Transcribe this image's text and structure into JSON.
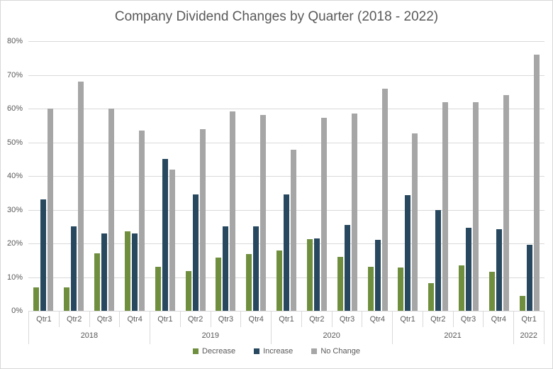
{
  "chart_data": {
    "type": "bar",
    "title": "Company Dividend Changes by Quarter (2018 - 2022)",
    "xlabel": "",
    "ylabel": "",
    "ylim": [
      0,
      80
    ],
    "y_unit": "%",
    "grid": true,
    "legend_position": "bottom",
    "y_tick_labels": [
      "0%",
      "10%",
      "20%",
      "30%",
      "40%",
      "50%",
      "60%",
      "70%",
      "80%"
    ],
    "quarter_labels": [
      "Qtr1",
      "Qtr2",
      "Qtr3",
      "Qtr4",
      "Qtr1",
      "Qtr2",
      "Qtr3",
      "Qtr4",
      "Qtr1",
      "Qtr2",
      "Qtr3",
      "Qtr4",
      "Qtr1",
      "Qtr2",
      "Qtr3",
      "Qtr4",
      "Qtr1"
    ],
    "year_groups": [
      {
        "label": "2018",
        "span": 4
      },
      {
        "label": "2019",
        "span": 4
      },
      {
        "label": "2020",
        "span": 4
      },
      {
        "label": "2021",
        "span": 4
      },
      {
        "label": "2022",
        "span": 1
      }
    ],
    "categories": [
      "2018 Qtr1",
      "2018 Qtr2",
      "2018 Qtr3",
      "2018 Qtr4",
      "2019 Qtr1",
      "2019 Qtr2",
      "2019 Qtr3",
      "2019 Qtr4",
      "2020 Qtr1",
      "2020 Qtr2",
      "2020 Qtr3",
      "2020 Qtr4",
      "2021 Qtr1",
      "2021 Qtr2",
      "2021 Qtr3",
      "2021 Qtr4",
      "2022 Qtr1"
    ],
    "series": [
      {
        "name": "Decrease",
        "color": "#6f8f3f",
        "values": [
          7,
          7,
          17,
          23.5,
          13,
          11.7,
          15.8,
          16.8,
          17.8,
          21.3,
          16,
          13,
          12.9,
          8.2,
          13.5,
          11.6,
          4.5
        ]
      },
      {
        "name": "Increase",
        "color": "#27485e",
        "values": [
          33,
          25,
          23,
          23,
          45,
          34.5,
          25,
          25,
          34.5,
          21.5,
          25.5,
          21,
          34.4,
          30,
          24.7,
          24.3,
          19.5
        ]
      },
      {
        "name": "No Change",
        "color": "#a6a6a6",
        "values": [
          60,
          68,
          60,
          53.5,
          42,
          53.8,
          59.2,
          58.2,
          47.7,
          57.2,
          58.5,
          66,
          52.7,
          61.8,
          61.8,
          64.1,
          76
        ]
      }
    ],
    "colors": {
      "grid": "#d9d9d9",
      "text": "#595959",
      "border": "#d7d7d7",
      "background": "#ffffff"
    }
  }
}
